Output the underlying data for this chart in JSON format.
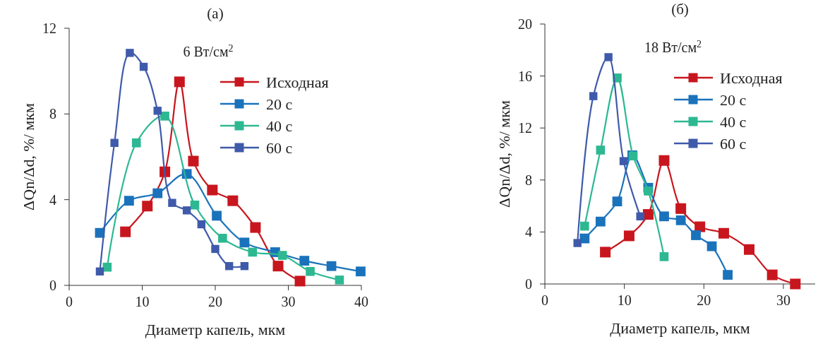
{
  "chart_data": [
    {
      "type": "line",
      "title": "(а)",
      "subtitle": "6 Вт/см$^{2}$",
      "xlabel": "Диаметр капель, мкм",
      "ylabel": "ΔQn/Δd, %/ мкм",
      "xlim": [
        0,
        40
      ],
      "xticks": [
        0,
        10,
        20,
        30,
        40
      ],
      "ylim": [
        0,
        12
      ],
      "yticks": [
        0,
        4,
        8,
        12
      ],
      "grid": false,
      "legend": "top right",
      "marker": "square",
      "line_style": "solid",
      "series": [
        {
          "name": "Исходная",
          "color": "#c8161e",
          "x": [
            7.7,
            10.7,
            13.1,
            15.1,
            17.0,
            19.6,
            22.4,
            25.5,
            28.6,
            31.6
          ],
          "values": [
            2.5,
            3.7,
            5.3,
            9.5,
            5.8,
            4.45,
            3.95,
            2.7,
            0.9,
            0.2
          ]
        },
        {
          "name": "20 с",
          "color": "#1a72bb",
          "x": [
            4.2,
            8.2,
            12.1,
            16.1,
            20.2,
            24.0,
            28.2,
            32.2,
            35.9,
            39.9
          ],
          "values": [
            2.45,
            3.95,
            4.3,
            5.2,
            3.25,
            2.0,
            1.55,
            1.15,
            0.9,
            0.65
          ]
        },
        {
          "name": "40 с",
          "color": "#2db892",
          "x": [
            5.2,
            9.2,
            13.1,
            17.2,
            21.0,
            25.1,
            29.2,
            33.0,
            37.0
          ],
          "values": [
            0.85,
            6.65,
            7.9,
            3.75,
            2.2,
            1.55,
            1.4,
            0.65,
            0.25
          ]
        },
        {
          "name": "60 с",
          "color": "#3f5aaa",
          "x": [
            4.2,
            6.2,
            8.3,
            10.2,
            12.1,
            14.1,
            16.1,
            18.1,
            20.0,
            21.9,
            24.0
          ],
          "values": [
            0.65,
            6.65,
            10.85,
            10.2,
            8.15,
            3.85,
            3.5,
            2.85,
            1.7,
            0.9,
            0.9
          ]
        }
      ]
    },
    {
      "type": "line",
      "title": "(б)",
      "subtitle": "18 Вт/см$^{2}$",
      "xlabel": "Диаметр капель, мкм",
      "ylabel": "ΔQn/Δd, %/ мкм",
      "xlim": [
        0,
        34
      ],
      "xticks": [
        0,
        10,
        20,
        30
      ],
      "ylim": [
        0,
        20
      ],
      "yticks": [
        0,
        4,
        8,
        12,
        16,
        20
      ],
      "grid": false,
      "legend": "top right",
      "marker": "square",
      "line_style": "solid",
      "series": [
        {
          "name": "Исходная",
          "color": "#c8161e",
          "x": [
            7.6,
            10.6,
            13.0,
            15.0,
            17.1,
            19.5,
            22.5,
            25.7,
            28.6,
            31.5
          ],
          "values": [
            2.45,
            3.7,
            5.35,
            9.5,
            5.8,
            4.4,
            3.9,
            2.65,
            0.7,
            0
          ]
        },
        {
          "name": "20 с",
          "color": "#1a72bb",
          "x": [
            5.0,
            7.0,
            9.1,
            11.0,
            13.0,
            15.0,
            17.1,
            19.0,
            21.0,
            23.0
          ],
          "values": [
            3.5,
            4.8,
            6.35,
            9.9,
            7.4,
            5.2,
            4.9,
            3.75,
            2.9,
            0.7
          ]
        },
        {
          "name": "40 с",
          "color": "#2db892",
          "x": [
            5.0,
            7.0,
            9.1,
            11.1,
            13.0,
            15.0
          ],
          "values": [
            4.45,
            10.3,
            15.85,
            9.85,
            7.15,
            2.1
          ]
        },
        {
          "name": "60 с",
          "color": "#3f5aaa",
          "x": [
            4.1,
            6.1,
            8.0,
            9.9,
            12.0
          ],
          "values": [
            3.15,
            14.45,
            17.45,
            9.45,
            5.2
          ]
        }
      ]
    }
  ]
}
